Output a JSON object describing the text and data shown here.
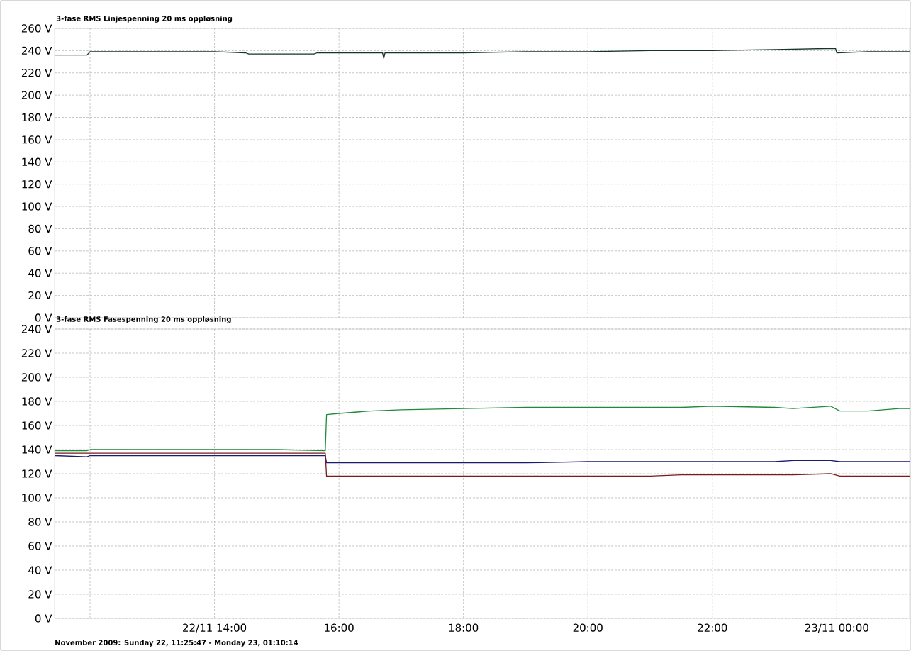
{
  "chart_data": [
    {
      "type": "line",
      "title": "3-fase RMS Linjespenning 20 ms oppløsning",
      "x": [
        11.43,
        11.95,
        12.0,
        13.0,
        14.0,
        14.5,
        14.55,
        15.6,
        15.65,
        16.0,
        16.7,
        16.72,
        16.74,
        17.0,
        18.0,
        19.0,
        20.0,
        21.0,
        22.0,
        23.0,
        23.98,
        24.0,
        24.5,
        25.17
      ],
      "series": [
        {
          "color": "#16352a",
          "values": [
            236,
            236,
            239,
            239,
            239,
            238,
            237,
            237,
            238,
            238,
            238,
            233,
            238,
            238,
            238,
            239,
            239,
            240,
            240,
            241,
            242,
            238,
            239,
            239
          ]
        }
      ],
      "xlim": [
        11.43,
        25.17
      ],
      "xticks": [
        {
          "value": 12,
          "label": null
        },
        {
          "value": 14,
          "label": null
        },
        {
          "value": 16,
          "label": null
        },
        {
          "value": 18,
          "label": null
        },
        {
          "value": 20,
          "label": null
        },
        {
          "value": 22,
          "label": null
        },
        {
          "value": 24,
          "label": null
        }
      ],
      "ylim": [
        0,
        260
      ],
      "yticks": [
        {
          "value": 0,
          "label": "0 V"
        },
        {
          "value": 20,
          "label": "20 V"
        },
        {
          "value": 40,
          "label": "40 V"
        },
        {
          "value": 60,
          "label": "60 V"
        },
        {
          "value": 80,
          "label": "80 V"
        },
        {
          "value": 100,
          "label": "100 V"
        },
        {
          "value": 120,
          "label": "120 V"
        },
        {
          "value": 140,
          "label": "140 V"
        },
        {
          "value": 160,
          "label": "160 V"
        },
        {
          "value": 180,
          "label": "180 V"
        },
        {
          "value": 200,
          "label": "200 V"
        },
        {
          "value": 220,
          "label": "220 V"
        },
        {
          "value": 240,
          "label": "240 V"
        },
        {
          "value": 260,
          "label": "260 V"
        }
      ],
      "grid": true,
      "tick_labels": "y"
    },
    {
      "type": "line",
      "title": "3-fase RMS Fasespenning 20 ms oppløsning",
      "x": [
        11.43,
        11.95,
        12.0,
        13.0,
        14.0,
        15.0,
        15.78,
        15.8,
        16.0,
        16.5,
        17.0,
        18.0,
        19.0,
        20.0,
        21.0,
        21.5,
        22.0,
        23.0,
        23.3,
        23.9,
        24.05,
        24.5,
        25.0,
        25.17
      ],
      "series": [
        {
          "color": "#1f8a3c",
          "values": [
            139,
            139,
            140,
            140,
            140,
            140,
            139,
            169,
            170,
            172,
            173,
            174,
            175,
            175,
            175,
            175,
            176,
            175,
            174,
            176,
            172,
            172,
            174,
            174
          ]
        },
        {
          "color": "#1a1a6e",
          "values": [
            135,
            134,
            135,
            135,
            135,
            135,
            135,
            129,
            129,
            129,
            129,
            129,
            129,
            130,
            130,
            130,
            130,
            130,
            131,
            131,
            130,
            130,
            130,
            130
          ]
        },
        {
          "color": "#7a1a1a",
          "values": [
            137,
            137,
            137,
            137,
            137,
            137,
            137,
            118,
            118,
            118,
            118,
            118,
            118,
            118,
            118,
            119,
            119,
            119,
            119,
            120,
            118,
            118,
            118,
            118
          ]
        }
      ],
      "xlim": [
        11.43,
        25.17
      ],
      "xticks": [
        {
          "value": 12,
          "label": null
        },
        {
          "value": 14,
          "label": "22/11 14:00"
        },
        {
          "value": 16,
          "label": "16:00"
        },
        {
          "value": 18,
          "label": "18:00"
        },
        {
          "value": 20,
          "label": "20:00"
        },
        {
          "value": 22,
          "label": "22:00"
        },
        {
          "value": 24,
          "label": "23/11 00:00"
        }
      ],
      "ylim": [
        0,
        240
      ],
      "yticks": [
        {
          "value": 0,
          "label": "0 V"
        },
        {
          "value": 20,
          "label": "20 V"
        },
        {
          "value": 40,
          "label": "40 V"
        },
        {
          "value": 60,
          "label": "60 V"
        },
        {
          "value": 80,
          "label": "80 V"
        },
        {
          "value": 100,
          "label": "100 V"
        },
        {
          "value": 120,
          "label": "120 V"
        },
        {
          "value": 140,
          "label": "140 V"
        },
        {
          "value": 160,
          "label": "160 V"
        },
        {
          "value": 180,
          "label": "180 V"
        },
        {
          "value": 200,
          "label": "200 V"
        },
        {
          "value": 220,
          "label": "220 V"
        },
        {
          "value": 240,
          "label": "240 V"
        }
      ],
      "grid": true,
      "annotations": [
        "November 2009: Sunday 22, 11:25:47 - Monday 23, 01:10:14"
      ]
    }
  ]
}
